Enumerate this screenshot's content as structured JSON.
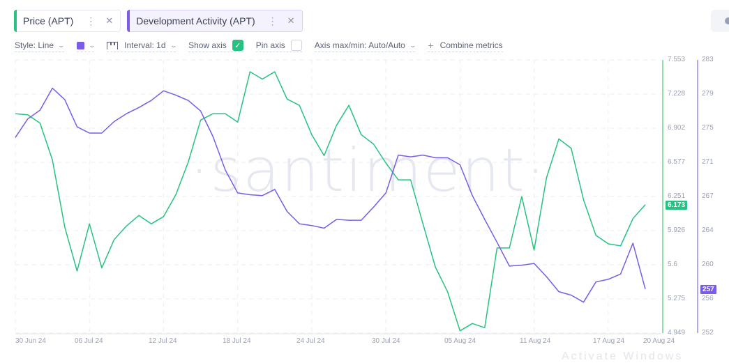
{
  "metrics": [
    {
      "label": "Price (APT)",
      "color": "#26c281",
      "more_icon": "⋮",
      "close_icon": "✕",
      "active": false
    },
    {
      "label": "Development Activity (APT)",
      "color": "#7a5ce6",
      "more_icon": "⋮",
      "close_icon": "✕",
      "active": true
    }
  ],
  "toolbar": {
    "style_label": "Style: Line",
    "color_swatch": "#7a5ce6",
    "interval_label": "Interval: 1d",
    "show_axis_label": "Show axis",
    "show_axis_checked": true,
    "pin_axis_label": "Pin axis",
    "pin_axis_checked": false,
    "axis_minmax_label": "Axis max/min: Auto/Auto",
    "combine_label": "Combine metrics",
    "chevron": "⌄",
    "check": "✓",
    "plus": "+"
  },
  "watermark": "·santiment·",
  "bottom_partial_text": "Activate Windows",
  "current_values": {
    "price": "6.173",
    "dev_activity": "257"
  },
  "chart_data": {
    "type": "line",
    "title": "",
    "xlabel": "",
    "x_tick_labels": [
      "30 Jun 24",
      "06 Jul 24",
      "12 Jul 24",
      "18 Jul 24",
      "24 Jul 24",
      "30 Jul 24",
      "05 Aug 24",
      "11 Aug 24",
      "17 Aug 24",
      "20 Aug 24"
    ],
    "grid": true,
    "legend_position": "top",
    "x": [
      "30 Jun",
      "01 Jul",
      "02 Jul",
      "03 Jul",
      "04 Jul",
      "05 Jul",
      "06 Jul",
      "07 Jul",
      "08 Jul",
      "09 Jul",
      "10 Jul",
      "11 Jul",
      "12 Jul",
      "13 Jul",
      "14 Jul",
      "15 Jul",
      "16 Jul",
      "17 Jul",
      "18 Jul",
      "19 Jul",
      "20 Jul",
      "21 Jul",
      "22 Jul",
      "23 Jul",
      "24 Jul",
      "25 Jul",
      "26 Jul",
      "27 Jul",
      "28 Jul",
      "29 Jul",
      "30 Jul",
      "31 Jul",
      "01 Aug",
      "02 Aug",
      "03 Aug",
      "04 Aug",
      "05 Aug",
      "06 Aug",
      "07 Aug",
      "08 Aug",
      "09 Aug",
      "10 Aug",
      "11 Aug",
      "12 Aug",
      "13 Aug",
      "14 Aug",
      "15 Aug",
      "16 Aug",
      "17 Aug",
      "18 Aug",
      "19 Aug",
      "20 Aug"
    ],
    "series": [
      {
        "name": "Price (APT)",
        "axis": "left",
        "color": "#26c281",
        "ylim": [
          4.949,
          7.553
        ],
        "y_tick_labels": [
          "7.553",
          "7.228",
          "6.902",
          "6.577",
          "6.251",
          "5.926",
          "5.6",
          "5.275",
          "4.949"
        ],
        "values": [
          7.04,
          7.03,
          6.95,
          6.6,
          5.96,
          5.54,
          5.99,
          5.57,
          5.84,
          5.97,
          6.07,
          5.99,
          6.06,
          6.27,
          6.58,
          6.98,
          7.04,
          7.04,
          6.96,
          7.44,
          7.37,
          7.44,
          7.18,
          7.12,
          6.84,
          6.64,
          6.93,
          7.12,
          6.84,
          6.75,
          6.57,
          6.41,
          6.41,
          5.99,
          5.58,
          5.34,
          4.97,
          5.04,
          5.0,
          5.76,
          5.76,
          6.25,
          5.74,
          6.43,
          6.8,
          6.71,
          6.22,
          5.88,
          5.8,
          5.78,
          6.04,
          6.173
        ]
      },
      {
        "name": "Development Activity (APT)",
        "axis": "right",
        "color": "#7a5ce6",
        "ylim": [
          252,
          283
        ],
        "y_tick_labels": [
          "283",
          "279",
          "275",
          "271",
          "267",
          "264",
          "260",
          "256",
          "252"
        ],
        "values": [
          274.2,
          276.3,
          277.3,
          279.8,
          278.5,
          275.4,
          274.7,
          274.7,
          276.0,
          276.9,
          277.6,
          278.4,
          279.5,
          279.0,
          278.4,
          277.2,
          274.3,
          270.5,
          267.9,
          267.7,
          267.6,
          268.3,
          265.8,
          264.4,
          264.2,
          263.9,
          264.9,
          264.8,
          264.8,
          266.3,
          267.9,
          272.2,
          272.0,
          272.2,
          271.9,
          271.9,
          271.1,
          267.6,
          264.9,
          262.3,
          259.6,
          259.7,
          259.9,
          258.4,
          256.7,
          256.3,
          255.5,
          257.8,
          258.1,
          258.7,
          262.2,
          257
        ]
      }
    ]
  },
  "axis_colors": {
    "price": "#8ee0a6",
    "dev_activity": "#b3a5f0"
  }
}
